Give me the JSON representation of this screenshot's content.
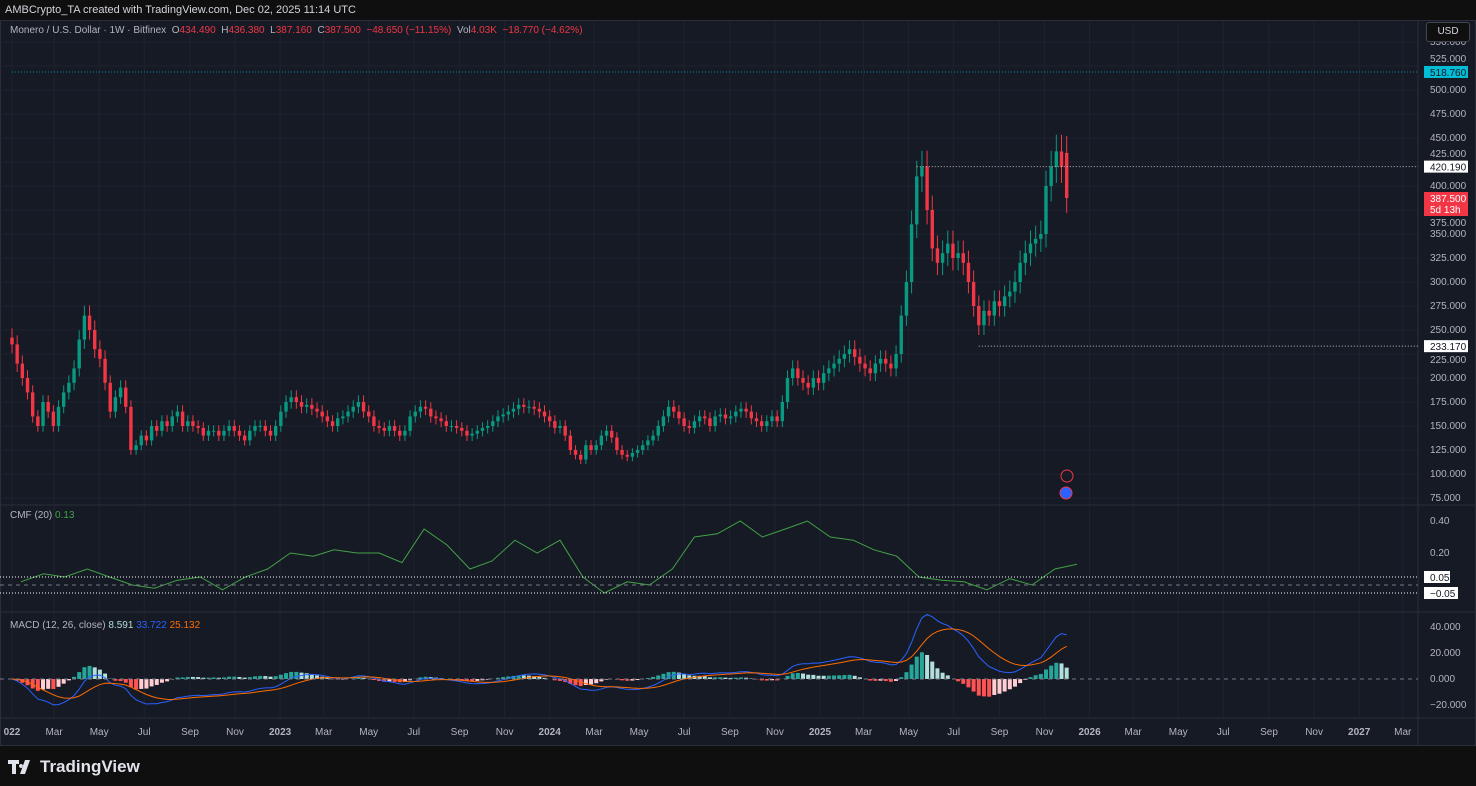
{
  "header": {
    "credit": "AMBCrypto_TA created with TradingView.com, Dec 02, 2025 11:14 UTC"
  },
  "legend": {
    "symbol": "Monero / U.S. Dollar · 1W · Bitfinex",
    "o_label": "O",
    "o": "434.490",
    "h_label": "H",
    "h": "436.380",
    "l_label": "L",
    "l": "387.160",
    "c_label": "C",
    "c": "387.500",
    "change": "−48.650 (−11.15%)",
    "vol_label": "Vol",
    "vol": "4.03K",
    "vol_change": "−18.770 (−4.62%)"
  },
  "currency": "USD",
  "indicators": {
    "cmf_label": "CMF (20)",
    "cmf_value": "0.13",
    "macd_label": "MACD (12, 26, close)",
    "macd_value": "8.591",
    "signal_value": "33.722",
    "hist_value": "25.132"
  },
  "footer": {
    "brand": "TradingView"
  },
  "colors": {
    "up": "#089981",
    "down": "#f23645",
    "cmf": "#43a047",
    "macd": "#2962ff",
    "signal": "#ff6d00",
    "hist_up": "#26a69a",
    "hist_up_light": "#b2dfdb",
    "hist_down": "#ff5252",
    "hist_down_light": "#ffcdd2",
    "cyan": "#00bcd4"
  },
  "chart_data": {
    "type": "candlestick",
    "interval": "1W",
    "start_week": "2022-01-03",
    "closes": [
      235,
      215,
      200,
      185,
      160,
      150,
      175,
      165,
      150,
      170,
      185,
      195,
      210,
      240,
      265,
      250,
      230,
      220,
      195,
      165,
      180,
      190,
      170,
      125,
      130,
      140,
      135,
      150,
      145,
      155,
      150,
      160,
      165,
      150,
      155,
      150,
      148,
      140,
      145,
      145,
      140,
      145,
      150,
      145,
      140,
      135,
      145,
      150,
      150,
      145,
      140,
      150,
      165,
      175,
      180,
      175,
      170,
      172,
      168,
      165,
      160,
      155,
      150,
      158,
      160,
      165,
      170,
      175,
      165,
      160,
      150,
      148,
      145,
      150,
      145,
      140,
      145,
      160,
      165,
      170,
      168,
      160,
      158,
      155,
      150,
      150,
      148,
      145,
      140,
      142,
      145,
      148,
      150,
      155,
      160,
      162,
      165,
      168,
      172,
      170,
      170,
      168,
      165,
      160,
      155,
      148,
      150,
      140,
      125,
      120,
      115,
      130,
      125,
      130,
      140,
      145,
      138,
      125,
      120,
      118,
      122,
      125,
      130,
      135,
      140,
      150,
      160,
      170,
      165,
      158,
      150,
      148,
      155,
      160,
      158,
      150,
      160,
      162,
      158,
      160,
      165,
      168,
      165,
      158,
      155,
      150,
      155,
      160,
      155,
      175,
      200,
      210,
      200,
      195,
      190,
      200,
      195,
      205,
      210,
      215,
      220,
      225,
      230,
      222,
      215,
      210,
      205,
      215,
      220,
      215,
      210,
      225,
      265,
      300,
      360,
      410,
      420,
      375,
      335,
      320,
      330,
      340,
      325,
      330,
      320,
      300,
      275,
      255,
      270,
      265,
      280,
      275,
      285,
      290,
      300,
      320,
      330,
      340,
      345,
      350,
      400,
      420,
      436,
      420,
      387.5
    ],
    "last_open": 434.49,
    "price_axis": {
      "ticks": [
        75,
        100,
        125,
        150,
        175,
        200,
        225,
        250,
        275,
        300,
        325,
        350,
        375,
        400,
        425,
        450,
        475,
        500,
        525,
        550
      ],
      "range": [
        70,
        550
      ]
    },
    "price_labels": [
      {
        "value": 518.76,
        "text": "518.760",
        "color": "#00bcd4",
        "from": "2022-01-03"
      },
      {
        "value": 420.19,
        "text": "420.190",
        "color": "#ffffff",
        "from": "2025-05-12"
      },
      {
        "value": 233.17,
        "text": "233.170",
        "color": "#ffffff",
        "from": "2025-08-04"
      }
    ],
    "last_price": {
      "text": "387.500",
      "countdown": "5d 13h"
    },
    "cmf": {
      "dates": [
        "2022-01",
        "2022-02",
        "2022-03",
        "2022-04",
        "2022-05",
        "2022-06",
        "2022-07",
        "2022-08",
        "2022-09",
        "2022-10",
        "2022-11",
        "2022-12",
        "2023-01",
        "2023-02",
        "2023-03",
        "2023-04",
        "2023-05",
        "2023-06",
        "2023-07",
        "2023-08",
        "2023-09",
        "2023-10",
        "2023-11",
        "2023-12",
        "2024-01",
        "2024-02",
        "2024-03",
        "2024-04",
        "2024-05",
        "2024-06",
        "2024-07",
        "2024-08",
        "2024-09",
        "2024-10",
        "2024-11",
        "2024-12",
        "2025-01",
        "2025-02",
        "2025-03",
        "2025-04",
        "2025-05",
        "2025-06",
        "2025-07",
        "2025-08",
        "2025-09",
        "2025-10",
        "2025-11",
        "2025-12"
      ],
      "values": [
        0.02,
        0.07,
        0.05,
        0.1,
        0.05,
        0.0,
        -0.02,
        0.03,
        0.05,
        -0.03,
        0.05,
        0.1,
        0.2,
        0.18,
        0.22,
        0.2,
        0.2,
        0.14,
        0.35,
        0.25,
        0.1,
        0.15,
        0.28,
        0.2,
        0.28,
        0.05,
        -0.05,
        0.02,
        0.0,
        0.1,
        0.3,
        0.32,
        0.4,
        0.3,
        0.35,
        0.4,
        0.3,
        0.28,
        0.22,
        0.18,
        0.05,
        0.03,
        0.02,
        -0.03,
        0.04,
        0.0,
        0.1,
        0.13
      ],
      "ticks": [
        "0.40",
        "0.20"
      ],
      "levels": [
        {
          "value": 0.05,
          "text": "0.05"
        },
        {
          "value": -0.05,
          "text": "−0.05"
        }
      ]
    },
    "macd": {
      "ticks": [
        "40.000",
        "20.000",
        "0.000",
        "−20.000"
      ]
    },
    "time_axis": [
      {
        "label": "022",
        "date": "2022-01-03"
      },
      {
        "label": "Mar",
        "date": "2022-03-01"
      },
      {
        "label": "May",
        "date": "2022-05-01"
      },
      {
        "label": "Jul",
        "date": "2022-07-01"
      },
      {
        "label": "Sep",
        "date": "2022-09-01"
      },
      {
        "label": "Nov",
        "date": "2022-11-01"
      },
      {
        "label": "2023",
        "date": "2023-01-01"
      },
      {
        "label": "Mar",
        "date": "2023-03-01"
      },
      {
        "label": "May",
        "date": "2023-05-01"
      },
      {
        "label": "Jul",
        "date": "2023-07-01"
      },
      {
        "label": "Sep",
        "date": "2023-09-01"
      },
      {
        "label": "Nov",
        "date": "2023-11-01"
      },
      {
        "label": "2024",
        "date": "2024-01-01"
      },
      {
        "label": "Mar",
        "date": "2024-03-01"
      },
      {
        "label": "May",
        "date": "2024-05-01"
      },
      {
        "label": "Jul",
        "date": "2024-07-01"
      },
      {
        "label": "Sep",
        "date": "2024-09-01"
      },
      {
        "label": "Nov",
        "date": "2024-11-01"
      },
      {
        "label": "2025",
        "date": "2025-01-01"
      },
      {
        "label": "Mar",
        "date": "2025-03-01"
      },
      {
        "label": "May",
        "date": "2025-05-01"
      },
      {
        "label": "Jul",
        "date": "2025-07-01"
      },
      {
        "label": "Sep",
        "date": "2025-09-01"
      },
      {
        "label": "Nov",
        "date": "2025-11-01"
      },
      {
        "label": "2026",
        "date": "2026-01-01"
      },
      {
        "label": "Mar",
        "date": "2026-03-01"
      },
      {
        "label": "May",
        "date": "2026-05-01"
      },
      {
        "label": "Jul",
        "date": "2026-07-01"
      },
      {
        "label": "Sep",
        "date": "2026-09-01"
      },
      {
        "label": "Nov",
        "date": "2026-11-01"
      },
      {
        "label": "2027",
        "date": "2027-01-01"
      },
      {
        "label": "Mar",
        "date": "2027-03-01"
      }
    ]
  }
}
